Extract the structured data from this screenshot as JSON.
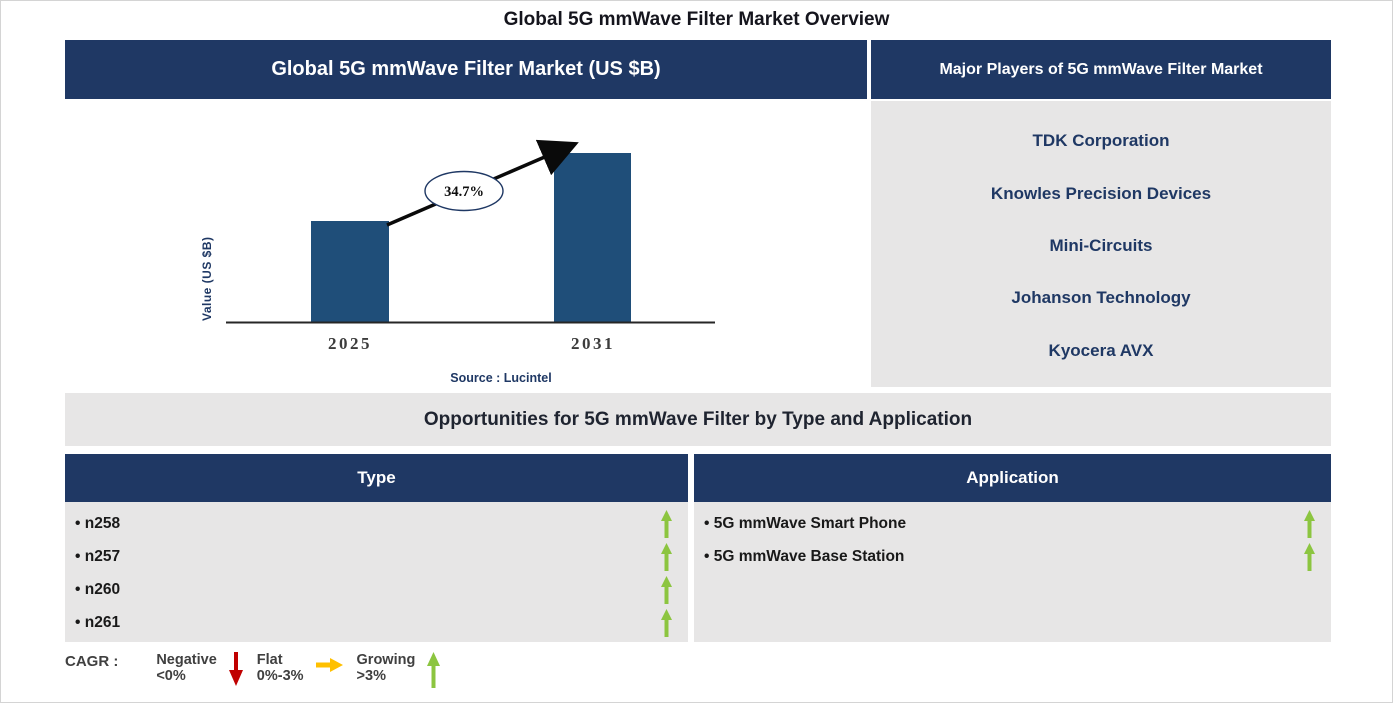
{
  "page": {
    "title": "Global 5G mmWave Filter Market Overview"
  },
  "market": {
    "header": "Global 5G mmWave Filter Market (US $B)"
  },
  "chart_data": {
    "type": "bar",
    "title": "Global 5G mmWave Filter Market (US $B)",
    "categories": [
      "2025",
      "2031"
    ],
    "values_relative": [
      0.6,
      1.0
    ],
    "note": "no numeric y-axis shown; bar heights are relative (2031 bar ~1.67x the 2025 bar)",
    "annotation": "34.7%",
    "ylabel": "Value (US $B)",
    "xlabel": "",
    "source": "Source : Lucintel",
    "grid": false,
    "bar_color": "#1F4E79"
  },
  "players": {
    "header": "Major Players of 5G mmWave Filter Market",
    "items": [
      "TDK Corporation",
      "Knowles Precision Devices",
      "Mini-Circuits",
      "Johanson Technology",
      "Kyocera AVX"
    ]
  },
  "opportunities": {
    "banner": "Opportunities for 5G mmWave Filter by Type and Application",
    "type": {
      "header": "Type",
      "items": [
        {
          "label": "n258",
          "trend": "growing"
        },
        {
          "label": "n257",
          "trend": "growing"
        },
        {
          "label": "n260",
          "trend": "growing"
        },
        {
          "label": "n261",
          "trend": "growing"
        }
      ]
    },
    "application": {
      "header": "Application",
      "items": [
        {
          "label": "5G mmWave Smart Phone",
          "trend": "growing"
        },
        {
          "label": "5G mmWave Base Station",
          "trend": "growing"
        }
      ]
    }
  },
  "legend": {
    "title": "CAGR :",
    "items": [
      {
        "label": "Negative",
        "range": "<0%",
        "direction": "down",
        "color": "#C00000"
      },
      {
        "label": "Flat",
        "range": "0%-3%",
        "direction": "right",
        "color": "#FFC000"
      },
      {
        "label": "Growing",
        "range": ">3%",
        "direction": "up",
        "color": "#8CC540"
      }
    ]
  },
  "colors": {
    "header_navy": "#1F3864",
    "bar_blue": "#1F4E79",
    "panel_gray": "#E7E6E6",
    "growing_green": "#8CC540",
    "negative_red": "#C00000",
    "flat_yellow": "#FFC000"
  }
}
